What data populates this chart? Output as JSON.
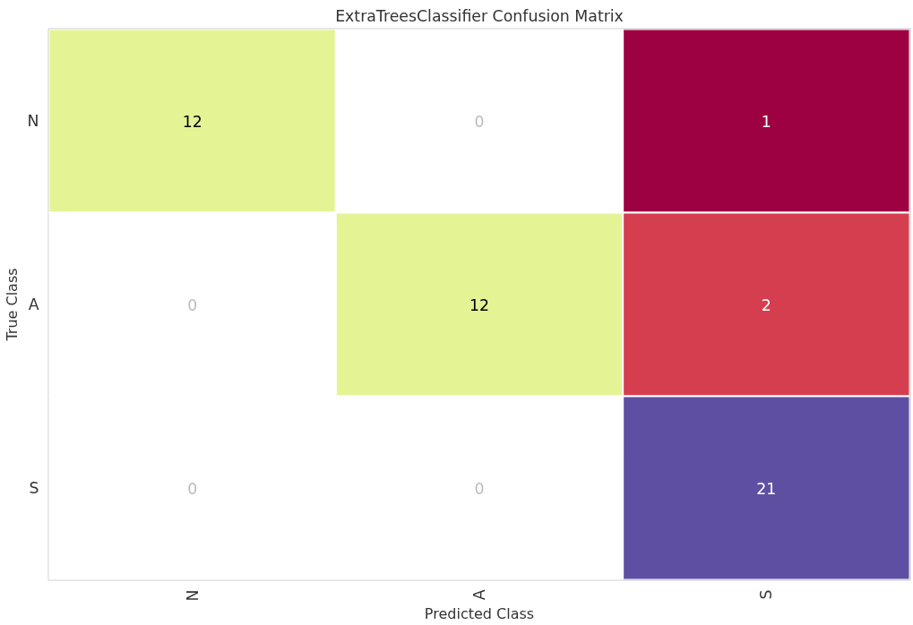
{
  "chart_data": {
    "type": "heatmap",
    "title": "ExtraTreesClassifier Confusion Matrix",
    "xlabel": "Predicted Class",
    "ylabel": "True Class",
    "categories": [
      "N",
      "A",
      "S"
    ],
    "y_categories": [
      "N",
      "A",
      "S"
    ],
    "cells": [
      [
        12,
        0,
        1
      ],
      [
        0,
        12,
        2
      ],
      [
        0,
        0,
        21
      ]
    ],
    "colors": [
      [
        "#e4f495",
        "#ffffff",
        "#9e0142"
      ],
      [
        "#ffffff",
        "#e4f495",
        "#d53e4f"
      ],
      [
        "#ffffff",
        "#ffffff",
        "#5e4fa2"
      ]
    ],
    "data_labels": true
  }
}
